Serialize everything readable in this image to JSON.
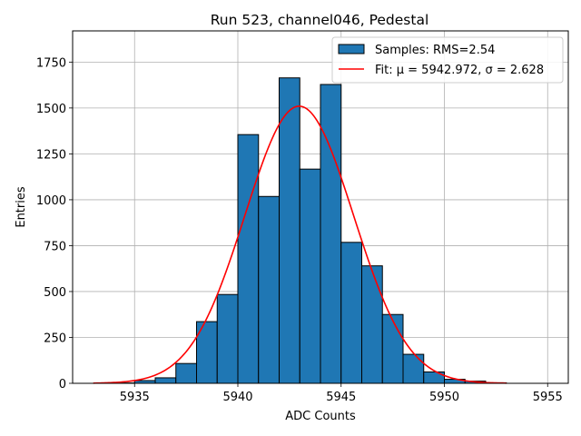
{
  "chart_data": {
    "type": "bar",
    "title": "Run 523, channel046, Pedestal",
    "xlabel": "ADC Counts",
    "ylabel": "Entries",
    "xlim": [
      5932.0,
      5956.0
    ],
    "ylim": [
      0,
      1920
    ],
    "xticks": [
      5935,
      5940,
      5945,
      5950,
      5955
    ],
    "yticks": [
      0,
      250,
      500,
      750,
      1000,
      1250,
      1500,
      1750
    ],
    "grid": true,
    "legend_position": "top-right",
    "bar_color": "#1f77b4",
    "fit_color": "#ff0000",
    "bins": [
      {
        "x0": 5934,
        "x1": 5935,
        "count": 2
      },
      {
        "x0": 5935,
        "x1": 5936,
        "count": 15
      },
      {
        "x0": 5936,
        "x1": 5937,
        "count": 30
      },
      {
        "x0": 5937,
        "x1": 5938,
        "count": 108
      },
      {
        "x0": 5938,
        "x1": 5939,
        "count": 336
      },
      {
        "x0": 5939,
        "x1": 5940,
        "count": 484
      },
      {
        "x0": 5940,
        "x1": 5941,
        "count": 1355
      },
      {
        "x0": 5941,
        "x1": 5942,
        "count": 1018
      },
      {
        "x0": 5942,
        "x1": 5943,
        "count": 1664
      },
      {
        "x0": 5943,
        "x1": 5944,
        "count": 1167
      },
      {
        "x0": 5944,
        "x1": 5945,
        "count": 1628
      },
      {
        "x0": 5945,
        "x1": 5946,
        "count": 768
      },
      {
        "x0": 5946,
        "x1": 5947,
        "count": 640
      },
      {
        "x0": 5947,
        "x1": 5948,
        "count": 375
      },
      {
        "x0": 5948,
        "x1": 5949,
        "count": 158
      },
      {
        "x0": 5949,
        "x1": 5950,
        "count": 62
      },
      {
        "x0": 5950,
        "x1": 5951,
        "count": 22
      },
      {
        "x0": 5951,
        "x1": 5952,
        "count": 12
      },
      {
        "x0": 5952,
        "x1": 5953,
        "count": 3
      }
    ],
    "fit": {
      "mu": 5942.972,
      "sigma": 2.628,
      "amplitude": 1510,
      "x_range": [
        5933,
        5953
      ]
    },
    "series": [
      {
        "name": "Samples: RMS=2.54",
        "kind": "histogram"
      },
      {
        "name": "Fit: μ = 5942.972, σ = 2.628",
        "kind": "line"
      }
    ]
  }
}
